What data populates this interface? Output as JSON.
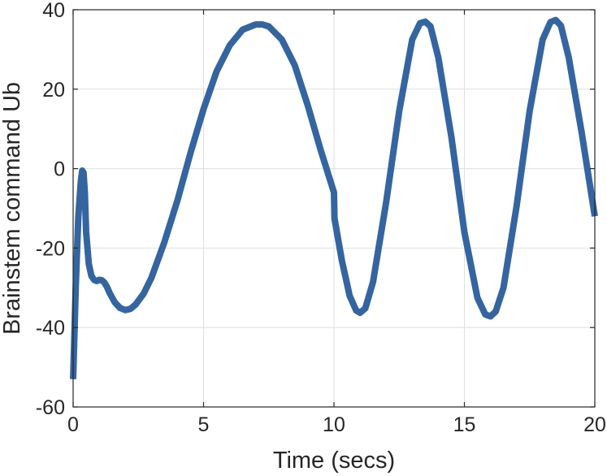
{
  "chart_data": {
    "type": "line",
    "title": "",
    "xlabel": "Time (secs)",
    "ylabel": "Brainstem command Ub",
    "xlim": [
      0,
      20
    ],
    "ylim": [
      -60,
      40
    ],
    "xticks": [
      0,
      5,
      10,
      15,
      20
    ],
    "yticks": [
      -60,
      -40,
      -20,
      0,
      20,
      40
    ],
    "xtick_labels": [
      "0",
      "5",
      "10",
      "15",
      "20"
    ],
    "ytick_labels": [
      "-60",
      "-40",
      "-20",
      "0",
      "20",
      "40"
    ],
    "grid": true,
    "legend": "none",
    "line_color": "#3465a0",
    "series": [
      {
        "x": [
          0,
          0.1,
          0.2,
          0.3,
          0.35,
          0.4,
          0.45,
          0.5,
          0.6,
          0.7,
          0.8,
          0.9,
          1.0,
          1.1,
          1.2,
          1.3,
          1.4,
          1.6,
          1.8,
          2.0,
          2.2,
          2.4,
          2.7,
          3.0,
          3.5,
          4.0,
          4.5,
          5.0,
          5.5,
          6.0,
          6.5,
          7.0,
          7.25,
          7.5,
          8.0,
          8.5,
          9.0,
          9.5,
          10.0,
          10.01,
          10.02,
          10.3,
          10.6,
          10.85,
          11.0,
          11.2,
          11.5,
          12.0,
          12.5,
          13.0,
          13.3,
          13.5,
          13.7,
          14.0,
          14.5,
          15.0,
          15.5,
          15.8,
          16.0,
          16.2,
          16.5,
          17.0,
          17.5,
          18.0,
          18.3,
          18.5,
          18.7,
          19.0,
          19.5,
          20.0
        ],
        "y": [
          -53,
          -30,
          -12,
          -3,
          -0.5,
          -1,
          -6,
          -16,
          -24,
          -27,
          -28,
          -28.3,
          -28,
          -28.1,
          -28.7,
          -29.8,
          -31.3,
          -33.7,
          -35.1,
          -35.6,
          -35.3,
          -34.2,
          -31.5,
          -27.5,
          -18.5,
          -8,
          4,
          15,
          24.5,
          31,
          35,
          36.3,
          36.3,
          35.8,
          32.5,
          26,
          15.8,
          4.5,
          -6,
          -9,
          -12.5,
          -23,
          -32,
          -35.7,
          -36.3,
          -35.2,
          -28.5,
          -8.5,
          14.5,
          32.5,
          36.6,
          37,
          35.8,
          28,
          8,
          -16,
          -32.5,
          -36.7,
          -37.2,
          -36,
          -30,
          -9.5,
          14.5,
          32.5,
          36.9,
          37.4,
          36,
          28,
          9,
          -12
        ]
      }
    ]
  }
}
